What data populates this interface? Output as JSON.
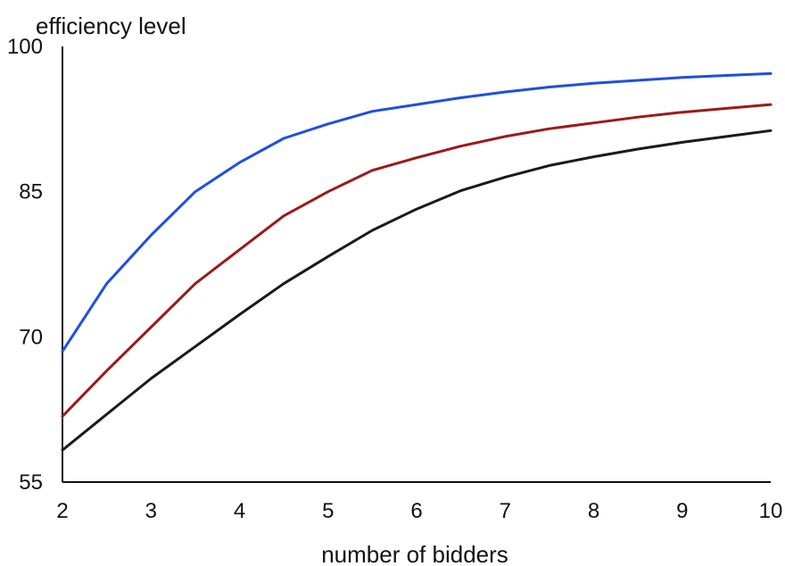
{
  "chart_data": {
    "type": "line",
    "title": "",
    "xlabel": "number of bidders",
    "ylabel": "efficiency level",
    "xlim": [
      2,
      10
    ],
    "ylim": [
      55,
      100
    ],
    "x_ticks": [
      2,
      3,
      4,
      5,
      6,
      7,
      8,
      9,
      10
    ],
    "y_ticks": [
      55,
      70,
      85,
      100
    ],
    "grid": false,
    "legend": "none",
    "x": [
      2,
      2.5,
      3,
      3.5,
      4,
      4.5,
      5,
      5.5,
      6,
      6.5,
      7,
      7.5,
      8,
      8.5,
      9,
      9.5,
      10
    ],
    "series": [
      {
        "color": "#1f4fe0",
        "values": [
          68.5,
          75.5,
          80.5,
          85,
          88,
          90.5,
          92,
          93.3,
          94,
          94.7,
          95.3,
          95.8,
          96.2,
          96.5,
          96.8,
          97,
          97.2
        ]
      },
      {
        "color": "#9b1a1a",
        "values": [
          61.8,
          66.5,
          71,
          75.5,
          79,
          82.5,
          85,
          87.2,
          88.5,
          89.7,
          90.7,
          91.5,
          92.1,
          92.7,
          93.2,
          93.6,
          94
        ]
      },
      {
        "color": "#1a1a1a",
        "values": [
          58.3,
          62,
          65.7,
          69,
          72.3,
          75.5,
          78.3,
          81,
          83.2,
          85.1,
          86.5,
          87.7,
          88.6,
          89.4,
          90.1,
          90.7,
          91.3
        ]
      }
    ]
  }
}
